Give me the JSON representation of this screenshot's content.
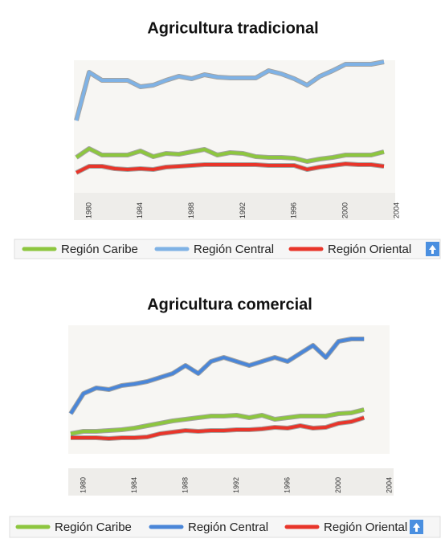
{
  "chart_data": [
    {
      "type": "line",
      "title": "Agricultura tradicional",
      "x": [
        1979,
        1980,
        1981,
        1982,
        1983,
        1984,
        1985,
        1986,
        1987,
        1988,
        1989,
        1990,
        1991,
        1992,
        1993,
        1994,
        1995,
        1996,
        1997,
        1998,
        1999,
        2000,
        2001,
        2002,
        2003
      ],
      "xlim": [
        1979,
        2004
      ],
      "xticks": [
        1980,
        1984,
        1988,
        1992,
        1996,
        2000,
        2004
      ],
      "ylim": [
        0,
        170
      ],
      "series": [
        {
          "name": "Región Caribe",
          "color": "#8dc63f",
          "values": [
            44,
            55,
            47,
            47,
            47,
            52,
            45,
            49,
            48,
            51,
            54,
            47,
            50,
            49,
            45,
            44,
            44,
            43,
            39,
            42,
            44,
            47,
            47,
            47,
            51
          ]
        },
        {
          "name": "Región Central",
          "color": "#7fb2e5",
          "values": [
            90,
            150,
            140,
            140,
            140,
            132,
            134,
            140,
            145,
            142,
            147,
            144,
            143,
            143,
            143,
            152,
            148,
            142,
            134,
            145,
            152,
            160,
            160,
            160,
            163
          ]
        },
        {
          "name": "Región Oriental",
          "color": "#e8352a",
          "values": [
            25,
            33,
            33,
            30,
            29,
            30,
            29,
            32,
            33,
            34,
            35,
            35,
            35,
            35,
            35,
            34,
            34,
            34,
            29,
            32,
            34,
            36,
            35,
            35,
            33
          ]
        }
      ]
    },
    {
      "type": "line",
      "title": "Agricultura comercial",
      "x": [
        1979,
        1980,
        1981,
        1982,
        1983,
        1984,
        1985,
        1986,
        1987,
        1988,
        1989,
        1990,
        1991,
        1992,
        1993,
        1994,
        1995,
        1996,
        1997,
        1998,
        1999,
        2000,
        2001,
        2002
      ],
      "xlim": [
        1979,
        2004
      ],
      "xticks": [
        1980,
        1984,
        1988,
        1992,
        1996,
        2000,
        2004
      ],
      "ylim": [
        0,
        160
      ],
      "series": [
        {
          "name": "Región Caribe",
          "color": "#8dc63f",
          "values": [
            30,
            33,
            33,
            34,
            35,
            37,
            40,
            43,
            46,
            48,
            50,
            52,
            52,
            53,
            50,
            53,
            48,
            50,
            52,
            52,
            52,
            55,
            56,
            60
          ]
        },
        {
          "name": "Región Central",
          "color": "#4a86d8",
          "values": [
            55,
            80,
            87,
            85,
            90,
            92,
            95,
            100,
            105,
            115,
            105,
            120,
            125,
            120,
            115,
            120,
            125,
            120,
            130,
            140,
            125,
            145,
            148,
            148
          ]
        },
        {
          "name": "Región Oriental",
          "color": "#e8352a",
          "values": [
            25,
            25,
            25,
            24,
            25,
            25,
            26,
            30,
            32,
            34,
            33,
            34,
            34,
            35,
            35,
            36,
            38,
            37,
            40,
            37,
            38,
            43,
            45,
            50
          ]
        }
      ]
    }
  ]
}
